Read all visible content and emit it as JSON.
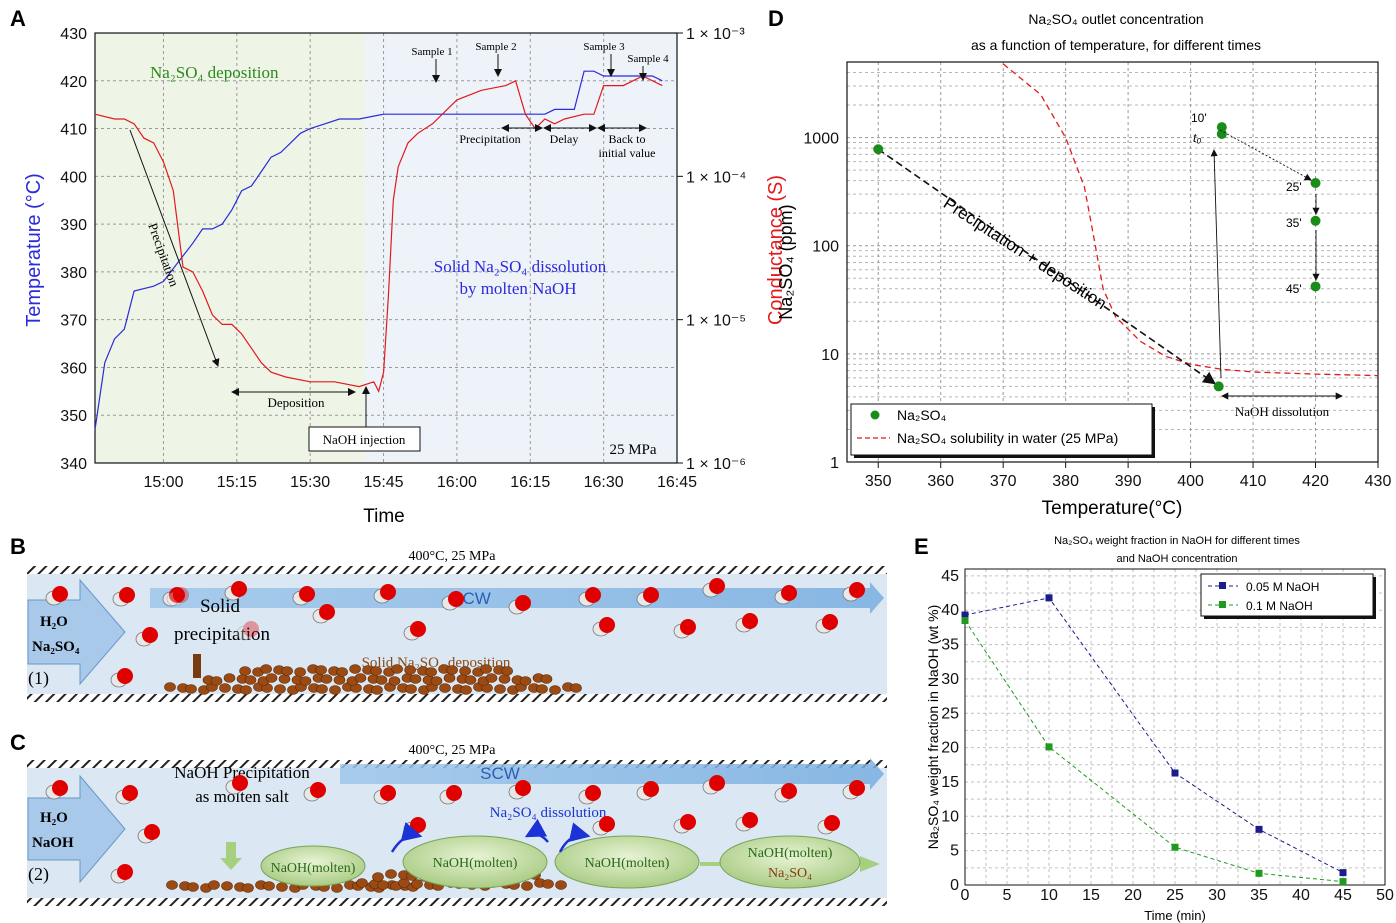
{
  "colors": {
    "temperature": "#2b2bdb",
    "conductance": "#e31a1c",
    "green_point": "#1a8c1a",
    "solubility": "#e31a1c",
    "navy_series": "#1c1c8c",
    "green_series": "#1f9a1f",
    "panel_a_left_bg": "#eef5e6",
    "panel_a_right_bg": "#eef3fa"
  },
  "panel_letters": {
    "a": "A",
    "b": "B",
    "c": "C",
    "d": "D",
    "e": "E"
  },
  "chart_data": [
    {
      "id": "A",
      "type": "line",
      "xlabel": "Time",
      "ylabel_left": "Temperature (°C)",
      "ylabel_right": "Conductance (S)",
      "x_ticks": [
        "15:00",
        "15:15",
        "15:30",
        "15:45",
        "16:00",
        "16:15",
        "16:30",
        "16:45"
      ],
      "y_ticks_left": [
        340,
        350,
        360,
        370,
        380,
        390,
        400,
        410,
        420,
        430
      ],
      "y_ticks_right": [
        "1 × 10⁻⁶",
        "1 × 10⁻⁵",
        "1 × 10⁻⁴",
        "1 × 10⁻³"
      ],
      "xlim_min": [
        -14,
        105
      ],
      "ylim_left": [
        340,
        430
      ],
      "log_y_right": true,
      "series": [
        {
          "name": "Temperature",
          "x": [
            -14,
            -12,
            -10,
            -8,
            -6,
            -2,
            0,
            3,
            6,
            8,
            10,
            12,
            14,
            16,
            18,
            20,
            22,
            24,
            26,
            28,
            30,
            33,
            36,
            40,
            45,
            50,
            55,
            60,
            65,
            70,
            71,
            73,
            75,
            78,
            80,
            84,
            86,
            88,
            90,
            95,
            100,
            102
          ],
          "y": [
            347,
            361,
            366,
            368,
            376,
            377,
            378,
            382,
            386,
            389,
            389,
            390,
            393,
            397,
            398,
            401,
            404,
            405,
            407,
            409,
            410,
            411,
            412,
            412,
            413,
            413,
            413,
            413,
            413,
            413,
            413,
            413,
            413,
            413,
            414,
            414,
            422,
            422,
            421,
            421,
            421,
            420
          ]
        },
        {
          "name": "Conductance",
          "x": [
            -14,
            -10,
            -8,
            -6,
            -4,
            -2,
            0,
            2,
            4,
            6,
            8,
            10,
            12,
            14,
            16,
            18,
            20,
            22,
            25,
            30,
            35,
            40,
            43,
            44,
            45,
            46,
            47,
            48,
            50,
            52,
            55,
            60,
            65,
            70,
            72,
            74,
            76,
            78,
            80,
            82,
            86,
            88,
            90,
            94,
            96,
            98,
            100,
            102
          ],
          "y": [
            413,
            412,
            412,
            411,
            408,
            407,
            403,
            397,
            381,
            380,
            376,
            371,
            369,
            369,
            367,
            364,
            361,
            359,
            358,
            357,
            357,
            356,
            357,
            355,
            359,
            375,
            395,
            402,
            407,
            409,
            411,
            416,
            418,
            419,
            420,
            413,
            410,
            412,
            411,
            412,
            413,
            413,
            419,
            419,
            420,
            421,
            420,
            419
          ]
        }
      ],
      "annotations": {
        "deposition_region": "Na₂SO₄ deposition",
        "dissolution_line1": "Solid Na₂SO₄ dissolution",
        "dissolution_line2": "by molten NaOH",
        "precipitation": "Precipitation",
        "deposition": "Deposition",
        "naoh_injection": "NaOH injection",
        "pressure": "25 MPa",
        "sample1": "Sample 1",
        "sample2": "Sample 2",
        "sample3": "Sample 3",
        "sample4": "Sample 4",
        "precipitation2": "Precipitation",
        "delay": "Delay",
        "back_line1": "Back to",
        "back_line2": "initial value"
      }
    },
    {
      "id": "D",
      "type": "scatter",
      "title_line1": "Na₂SO₄ outlet concentration",
      "title_line2": "as a function of temperature, for different times",
      "xlabel": "Temperature(°C)",
      "ylabel": "Na₂SO₄ (ppm)",
      "x_ticks": [
        350,
        360,
        370,
        380,
        390,
        400,
        410,
        420,
        430
      ],
      "y_ticks": [
        "1",
        "10",
        "100",
        "1000"
      ],
      "xlim": [
        345,
        430
      ],
      "ylim": [
        1,
        5000
      ],
      "log_y": true,
      "series": [
        {
          "name": "Na₂SO₄",
          "x": [
            350,
            404.5,
            405,
            405,
            420,
            420,
            420
          ],
          "y": [
            780,
            5,
            1250,
            1080,
            380,
            170,
            42
          ]
        },
        {
          "name": "Na₂SO₄ solubility in water (25 MPa)",
          "x": [
            370,
            376,
            380,
            383,
            384.5,
            386,
            388,
            392,
            396,
            400,
            405,
            410,
            420,
            430
          ],
          "y": [
            4800,
            2500,
            1000,
            350,
            120,
            40,
            22,
            13,
            9.5,
            8,
            7.2,
            6.8,
            6.5,
            6.3
          ]
        }
      ],
      "annotations": {
        "precip_dep": "Precipitation + deposition",
        "naoh_dissolution": "NaOH dissolution",
        "t10": "10'",
        "t0": "t₀",
        "t25": "25'",
        "t35": "35'",
        "t45": "45'"
      }
    },
    {
      "id": "E",
      "type": "line",
      "title_line1": "Na₂SO₄ weight fraction in NaOH for different times",
      "title_line2": "and NaOH concentration",
      "xlabel": "Time (min)",
      "ylabel": "Na₂SO₄ weight fraction in NaOH (wt %)",
      "x_ticks": [
        0,
        5,
        10,
        15,
        20,
        25,
        30,
        35,
        40,
        45,
        50
      ],
      "y_ticks": [
        0,
        5,
        10,
        15,
        20,
        25,
        30,
        35,
        40,
        45
      ],
      "xlim": [
        0,
        50
      ],
      "ylim": [
        0,
        46
      ],
      "series": [
        {
          "name": "0.05 M NaOH",
          "x": [
            0,
            10,
            25,
            35,
            45
          ],
          "y": [
            39.3,
            41.8,
            16.3,
            8.1,
            1.8
          ]
        },
        {
          "name": "0.1 M NaOH",
          "x": [
            0,
            10,
            25,
            35,
            45
          ],
          "y": [
            38.5,
            20.1,
            5.5,
            1.7,
            0.5
          ]
        }
      ]
    }
  ],
  "panel_b": {
    "header": "400°C, 25 MPa",
    "inlet_line1": "H₂O",
    "inlet_line2": "Na₂SO₄",
    "scw": "SCW",
    "solid_line1": "Solid",
    "solid_line2": "precipitation",
    "deposition_label": "Solid Na₂SO₄ deposition",
    "step": "(1)"
  },
  "panel_c": {
    "header": "400°C, 25 MPa",
    "inlet_line1": "H₂O",
    "inlet_line2": "NaOH",
    "scw": "SCW",
    "precip_line1": "NaOH Precipitation",
    "precip_line2": "as molten salt",
    "dissolution": "Na₂SO₄ dissolution",
    "molten1": "NaOH(molten)",
    "molten2": "NaOH(molten)",
    "molten3": "NaOH(molten)",
    "molten4_line1": "NaOH(molten)",
    "molten4_line2": "Na₂SO₄",
    "step": "(2)"
  }
}
